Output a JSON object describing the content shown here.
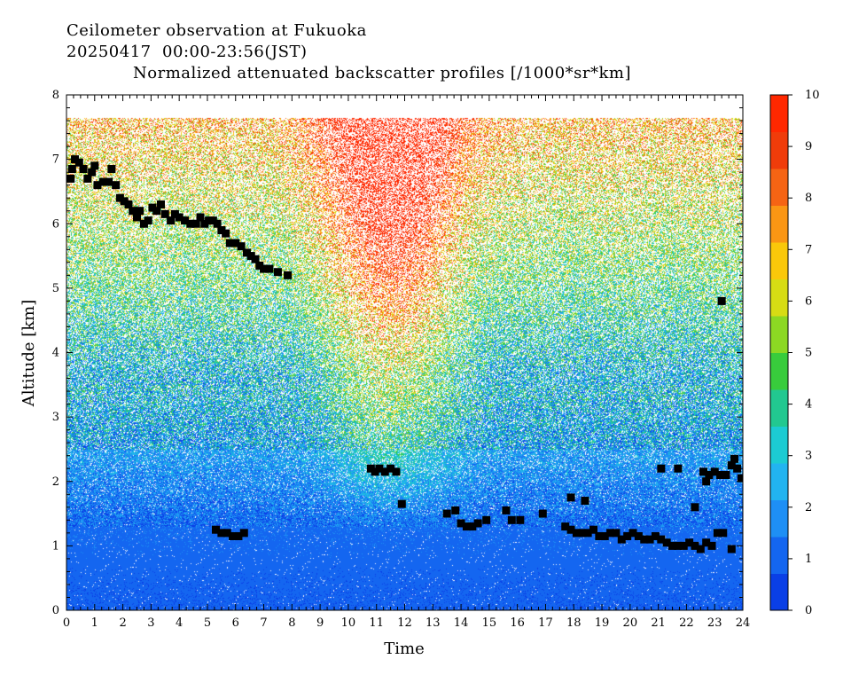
{
  "title": {
    "line1": "Ceilometer observation at Fukuoka",
    "line2": "20250417  00:00-23:56(JST)",
    "line3": "Normalized attenuated backscatter profiles [/1000*sr*km]"
  },
  "chart_data": {
    "type": "heatmap",
    "xlabel": "Time",
    "ylabel": "Altitude [km]",
    "xlim": [
      0,
      24
    ],
    "ylim": [
      0,
      8
    ],
    "data_top_altitude_km": 7.65,
    "x_ticks": [
      "0",
      "1",
      "2",
      "3",
      "4",
      "5",
      "6",
      "7",
      "8",
      "9",
      "10",
      "11",
      "12",
      "13",
      "14",
      "15",
      "16",
      "17",
      "18",
      "19",
      "20",
      "21",
      "22",
      "23",
      "24"
    ],
    "y_ticks": [
      "0",
      "1",
      "2",
      "3",
      "4",
      "5",
      "6",
      "7",
      "8"
    ],
    "colorbar": {
      "range": [
        0,
        10
      ],
      "ticks": [
        "0",
        "1",
        "2",
        "3",
        "4",
        "5",
        "6",
        "7",
        "8",
        "9",
        "10"
      ],
      "colors": [
        "#0a3fe6",
        "#1466f0",
        "#1e8ff5",
        "#22b4f0",
        "#1ccbd2",
        "#22c890",
        "#38cc3c",
        "#8cd823",
        "#d7dc14",
        "#fac80a",
        "#fa9614",
        "#f56414",
        "#f03c0a",
        "#ff2800"
      ]
    },
    "field_description": {
      "low_layer_value_near_surface": 1.2,
      "mid_layer_value": 2.5,
      "upper_value": 7.5,
      "plume_center_hour": 11.5
    },
    "cloud_base_series": {
      "name": "",
      "points": [
        [
          0.15,
          6.7
        ],
        [
          0.2,
          6.85
        ],
        [
          0.3,
          7.0
        ],
        [
          0.45,
          6.95
        ],
        [
          0.6,
          6.85
        ],
        [
          0.75,
          6.7
        ],
        [
          0.9,
          6.8
        ],
        [
          1.0,
          6.9
        ],
        [
          1.1,
          6.6
        ],
        [
          1.3,
          6.65
        ],
        [
          1.5,
          6.65
        ],
        [
          1.6,
          6.85
        ],
        [
          1.75,
          6.6
        ],
        [
          1.9,
          6.4
        ],
        [
          2.05,
          6.35
        ],
        [
          2.2,
          6.3
        ],
        [
          2.35,
          6.2
        ],
        [
          2.5,
          6.1
        ],
        [
          2.6,
          6.2
        ],
        [
          2.75,
          6.0
        ],
        [
          2.9,
          6.05
        ],
        [
          3.05,
          6.25
        ],
        [
          3.2,
          6.2
        ],
        [
          3.35,
          6.3
        ],
        [
          3.5,
          6.15
        ],
        [
          3.7,
          6.05
        ],
        [
          3.85,
          6.15
        ],
        [
          4.0,
          6.1
        ],
        [
          4.2,
          6.05
        ],
        [
          4.4,
          6.0
        ],
        [
          4.6,
          6.0
        ],
        [
          4.75,
          6.1
        ],
        [
          4.9,
          6.0
        ],
        [
          5.05,
          6.05
        ],
        [
          5.2,
          6.05
        ],
        [
          5.35,
          6.0
        ],
        [
          5.5,
          5.9
        ],
        [
          5.65,
          5.85
        ],
        [
          5.8,
          5.7
        ],
        [
          6.0,
          5.7
        ],
        [
          6.2,
          5.65
        ],
        [
          6.4,
          5.55
        ],
        [
          6.55,
          5.5
        ],
        [
          6.7,
          5.45
        ],
        [
          6.85,
          5.35
        ],
        [
          7.0,
          5.3
        ],
        [
          7.2,
          5.3
        ],
        [
          7.5,
          5.25
        ],
        [
          7.85,
          5.2
        ],
        [
          5.3,
          1.25
        ],
        [
          5.5,
          1.2
        ],
        [
          5.7,
          1.2
        ],
        [
          5.9,
          1.15
        ],
        [
          6.1,
          1.15
        ],
        [
          6.3,
          1.2
        ],
        [
          10.8,
          2.2
        ],
        [
          10.95,
          2.15
        ],
        [
          11.1,
          2.2
        ],
        [
          11.3,
          2.15
        ],
        [
          11.5,
          2.2
        ],
        [
          11.7,
          2.15
        ],
        [
          11.9,
          1.65
        ],
        [
          13.5,
          1.5
        ],
        [
          13.8,
          1.55
        ],
        [
          14.0,
          1.35
        ],
        [
          14.2,
          1.3
        ],
        [
          14.4,
          1.3
        ],
        [
          14.6,
          1.35
        ],
        [
          14.9,
          1.4
        ],
        [
          15.6,
          1.55
        ],
        [
          15.8,
          1.4
        ],
        [
          16.1,
          1.4
        ],
        [
          16.9,
          1.5
        ],
        [
          17.7,
          1.3
        ],
        [
          17.9,
          1.25
        ],
        [
          18.1,
          1.2
        ],
        [
          18.3,
          1.2
        ],
        [
          18.5,
          1.2
        ],
        [
          18.7,
          1.25
        ],
        [
          18.9,
          1.15
        ],
        [
          19.1,
          1.15
        ],
        [
          19.3,
          1.2
        ],
        [
          19.5,
          1.2
        ],
        [
          19.7,
          1.1
        ],
        [
          19.9,
          1.15
        ],
        [
          20.1,
          1.2
        ],
        [
          20.3,
          1.15
        ],
        [
          20.5,
          1.1
        ],
        [
          20.7,
          1.1
        ],
        [
          20.9,
          1.15
        ],
        [
          21.1,
          1.1
        ],
        [
          21.3,
          1.05
        ],
        [
          21.5,
          1.0
        ],
        [
          21.7,
          1.0
        ],
        [
          21.9,
          1.0
        ],
        [
          22.1,
          1.05
        ],
        [
          22.3,
          1.0
        ],
        [
          22.5,
          0.95
        ],
        [
          22.7,
          1.05
        ],
        [
          22.9,
          1.0
        ],
        [
          23.1,
          1.2
        ],
        [
          23.3,
          1.2
        ],
        [
          23.6,
          0.95
        ],
        [
          17.9,
          1.75
        ],
        [
          18.4,
          1.7
        ],
        [
          21.1,
          2.2
        ],
        [
          21.7,
          2.2
        ],
        [
          22.3,
          1.6
        ],
        [
          22.6,
          2.15
        ],
        [
          22.8,
          2.1
        ],
        [
          23.0,
          2.15
        ],
        [
          23.2,
          2.1
        ],
        [
          23.4,
          2.1
        ],
        [
          23.6,
          2.25
        ],
        [
          23.8,
          2.2
        ],
        [
          23.95,
          2.05
        ],
        [
          23.7,
          2.35
        ],
        [
          22.7,
          2.0
        ],
        [
          23.25,
          4.8
        ]
      ]
    }
  }
}
